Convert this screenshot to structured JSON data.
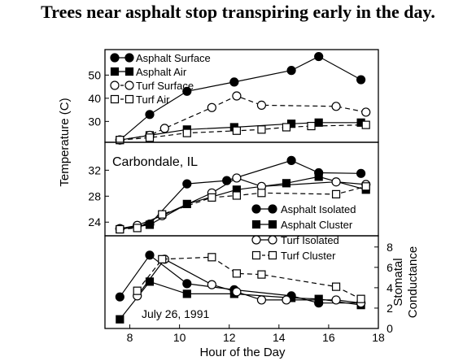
{
  "headline": "Trees near asphalt stop transpiring early in the day.",
  "chart_data": [
    {
      "type": "line",
      "ylabel": "Temperature (C)",
      "ylim": [
        21,
        61
      ],
      "yticks": [
        "30",
        "40",
        "50"
      ],
      "legend_position": "top-left",
      "series": [
        {
          "name": "Asphalt Surface",
          "marker": "filled-circle",
          "dash": "solid",
          "x": [
            7.6,
            8.8,
            10.3,
            12.2,
            14.5,
            15.6,
            17.3
          ],
          "y": [
            22,
            33,
            43,
            47,
            52,
            58,
            48
          ]
        },
        {
          "name": "Asphalt Air",
          "marker": "filled-square",
          "dash": "solid",
          "x": [
            7.6,
            8.8,
            10.3,
            12.2,
            14.5,
            15.6,
            17.3
          ],
          "y": [
            22,
            24,
            26.5,
            27.5,
            29,
            29.5,
            29.5
          ]
        },
        {
          "name": "Turf Surface",
          "marker": "open-circle",
          "dash": "dashed",
          "x": [
            7.6,
            8.8,
            9.4,
            11.3,
            12.3,
            13.3,
            16.3,
            17.5
          ],
          "y": [
            22,
            24,
            27,
            36,
            41,
            37,
            36.5,
            34
          ]
        },
        {
          "name": "Turf Air",
          "marker": "open-square",
          "dash": "dashed",
          "x": [
            7.6,
            8.8,
            10.3,
            12.3,
            13.3,
            14.3,
            15.3,
            17.5
          ],
          "y": [
            22,
            23,
            25,
            26,
            26.5,
            27.5,
            28,
            28.5
          ]
        }
      ]
    },
    {
      "type": "line",
      "ylim": [
        21.9,
        36.3
      ],
      "yticks": [
        "24",
        "28",
        "32"
      ],
      "annotation": "Carbondale, IL",
      "legend_position": "bottom-right",
      "series": [
        {
          "name": "Asphalt Isolated",
          "marker": "filled-circle",
          "dash": "solid",
          "x": [
            7.6,
            8.8,
            10.3,
            11.9,
            14.5,
            15.6,
            17.3
          ],
          "y": [
            23,
            23.7,
            29.9,
            30.4,
            33.5,
            31.6,
            31.5
          ]
        },
        {
          "name": "Asphalt Cluster",
          "marker": "filled-square",
          "dash": "solid",
          "x": [
            7.6,
            8.8,
            10.3,
            12.3,
            14.3,
            15.6,
            17.5
          ],
          "y": [
            22.9,
            23.6,
            26.8,
            29,
            30,
            31,
            29
          ]
        },
        {
          "name": "Turf Isolated",
          "marker": "open-circle",
          "dash": "solid",
          "x": [
            7.6,
            8.3,
            9.3,
            11.3,
            12.3,
            13.3,
            16.3,
            17.5
          ],
          "y": [
            23,
            23.5,
            25,
            28.5,
            30.8,
            29.5,
            30.2,
            29.8
          ]
        },
        {
          "name": "Turf Cluster",
          "marker": "open-square",
          "dash": "dashed",
          "x": [
            7.6,
            8.3,
            9.3,
            11.3,
            12.3,
            13.3,
            16.3,
            17.5
          ],
          "y": [
            22.9,
            23.1,
            25.2,
            27.8,
            28.1,
            28.5,
            28.3,
            29.5
          ]
        }
      ]
    },
    {
      "type": "line",
      "xlabel": "Hour of the Day",
      "ylabel_right": "Stomatal\nConductance",
      "annotation": "July 26, 1991",
      "xlim": [
        7,
        18
      ],
      "xticks": [
        "8",
        "10",
        "12",
        "14",
        "16",
        "18"
      ],
      "ylim": [
        0,
        9.1
      ],
      "yticks_right": [
        "0",
        "2",
        "4",
        "6",
        "8"
      ],
      "series": [
        {
          "name": "Asphalt Isolated",
          "marker": "filled-circle",
          "dash": "solid",
          "x": [
            7.6,
            8.8,
            10.3,
            12.2,
            14.5,
            15.6,
            17.3
          ],
          "y": [
            3.1,
            7.2,
            4.4,
            3.8,
            3.2,
            2.5,
            2.5
          ]
        },
        {
          "name": "Asphalt Cluster",
          "marker": "filled-square",
          "dash": "solid",
          "x": [
            7.6,
            8.8,
            10.3,
            12.2,
            14.5,
            15.6,
            17.3
          ],
          "y": [
            0.9,
            4.6,
            3.4,
            3.4,
            3.0,
            2.9,
            2.3
          ]
        },
        {
          "name": "Turf Isolated",
          "marker": "open-circle",
          "dash": "solid",
          "x": [
            8.3,
            9.4,
            11.3,
            12.3,
            13.3,
            14.3,
            16.3,
            17.3
          ],
          "y": [
            3.2,
            6.8,
            4.3,
            3.6,
            2.8,
            2.8,
            2.8,
            2.5
          ]
        },
        {
          "name": "Turf Cluster",
          "marker": "open-square",
          "dash": "dashed",
          "x": [
            8.3,
            9.3,
            11.3,
            12.3,
            13.3,
            16.3,
            17.3
          ],
          "y": [
            3.7,
            6.8,
            7.0,
            5.4,
            5.3,
            4.1,
            2.9
          ]
        }
      ]
    }
  ]
}
